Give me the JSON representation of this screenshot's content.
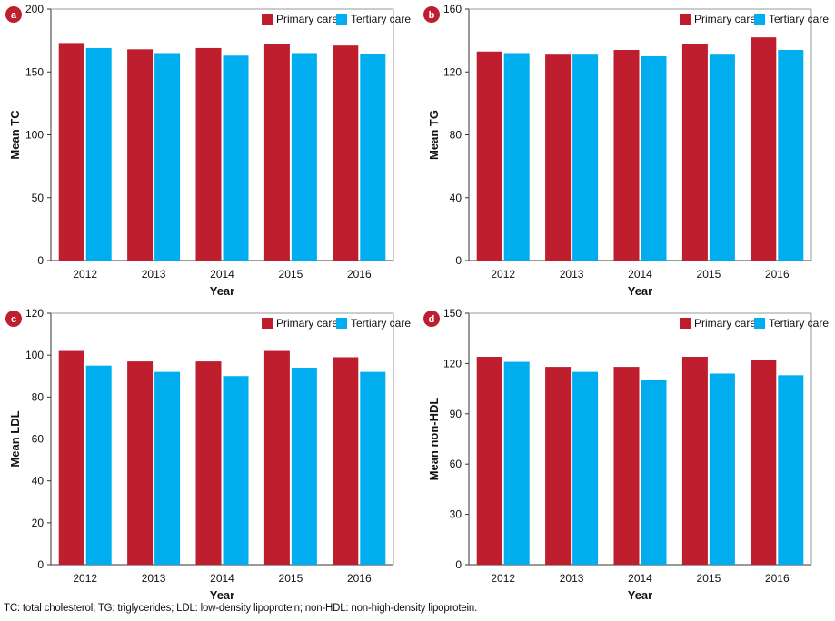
{
  "colors": {
    "primary": "#be1e2d",
    "tertiary": "#00aeef",
    "badge": "#be1e2d"
  },
  "legend": {
    "primary": "Primary care",
    "tertiary": "Tertiary care"
  },
  "footnote": "TC: total cholesterol; TG: triglycerides; LDL: low-density lipoprotein; non-HDL: non-high-density lipoprotein.",
  "chart_data": [
    {
      "type": "bar",
      "panel_label": "a",
      "categories": [
        "2012",
        "2013",
        "2014",
        "2015",
        "2016"
      ],
      "series": [
        {
          "name": "Primary care",
          "values": [
            173,
            168,
            169,
            172,
            171
          ]
        },
        {
          "name": "Tertiary care",
          "values": [
            169,
            165,
            163,
            165,
            164
          ]
        }
      ],
      "xlabel": "Year",
      "ylabel": "Mean TC",
      "ylim": [
        0,
        200
      ],
      "yticks": [
        "0",
        "50",
        "100",
        "150",
        "200"
      ],
      "legend_position": "top-right",
      "grid": false
    },
    {
      "type": "bar",
      "panel_label": "b",
      "categories": [
        "2012",
        "2013",
        "2014",
        "2015",
        "2016"
      ],
      "series": [
        {
          "name": "Primary care",
          "values": [
            133,
            131,
            134,
            138,
            142
          ]
        },
        {
          "name": "Tertiary care",
          "values": [
            132,
            131,
            130,
            131,
            134
          ]
        }
      ],
      "xlabel": "Year",
      "ylabel": "Mean TG",
      "ylim": [
        0,
        160
      ],
      "yticks": [
        "0",
        "40",
        "80",
        "120",
        "160"
      ],
      "legend_position": "top-right",
      "grid": false
    },
    {
      "type": "bar",
      "panel_label": "c",
      "categories": [
        "2012",
        "2013",
        "2014",
        "2015",
        "2016"
      ],
      "series": [
        {
          "name": "Primary care",
          "values": [
            102,
            97,
            97,
            102,
            99
          ]
        },
        {
          "name": "Tertiary care",
          "values": [
            95,
            92,
            90,
            94,
            92
          ]
        }
      ],
      "xlabel": "Year",
      "ylabel": "Mean LDL",
      "ylim": [
        0,
        120
      ],
      "yticks": [
        "0",
        "20",
        "40",
        "60",
        "80",
        "100",
        "120"
      ],
      "legend_position": "top-right",
      "grid": false
    },
    {
      "type": "bar",
      "panel_label": "d",
      "categories": [
        "2012",
        "2013",
        "2014",
        "2015",
        "2016"
      ],
      "series": [
        {
          "name": "Primary care",
          "values": [
            124,
            118,
            118,
            124,
            122
          ]
        },
        {
          "name": "Tertiary care",
          "values": [
            121,
            115,
            110,
            114,
            113
          ]
        }
      ],
      "xlabel": "Year",
      "ylabel": "Mean non-HDL",
      "ylim": [
        0,
        150
      ],
      "yticks": [
        "0",
        "30",
        "60",
        "90",
        "120",
        "150"
      ],
      "legend_position": "top-right",
      "grid": false
    }
  ]
}
